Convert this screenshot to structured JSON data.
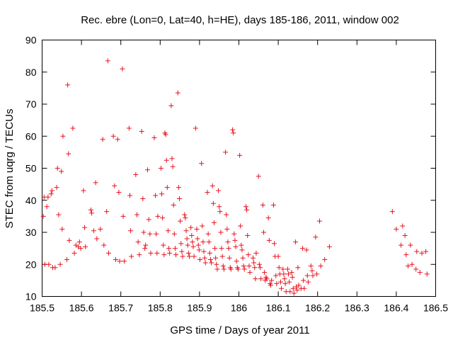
{
  "chart_data": {
    "type": "scatter",
    "title": "Rec. ebre (Lon=0, Lat=40, h=HE), days 185-186, 2011, window 002",
    "xlabel": "GPS time / Days of year 2011",
    "ylabel": "STEC from uqrg / TECUs",
    "xlim": [
      185.5,
      186.5
    ],
    "ylim": [
      10,
      90
    ],
    "xticks": [
      185.5,
      185.6,
      185.7,
      185.8,
      185.9,
      186,
      186.1,
      186.2,
      186.3,
      186.4,
      186.5
    ],
    "xtick_labels": [
      "185.5",
      "185.6",
      "185.7",
      "185.8",
      "185.9",
      "186",
      "186.1",
      "186.2",
      "186.3",
      "186.4",
      "186.5"
    ],
    "yticks": [
      10,
      20,
      30,
      40,
      50,
      60,
      70,
      80,
      90
    ],
    "ytick_labels": [
      "10",
      "20",
      "30",
      "40",
      "50",
      "60",
      "70",
      "80",
      "90"
    ],
    "grid": false,
    "legend": "none",
    "marker": "+",
    "color": "#e8121e",
    "series": [
      {
        "name": "STEC",
        "points": [
          [
            185.503,
            35
          ],
          [
            185.505,
            41
          ],
          [
            185.507,
            20
          ],
          [
            185.512,
            38
          ],
          [
            185.515,
            41
          ],
          [
            185.517,
            20
          ],
          [
            185.523,
            42
          ],
          [
            185.525,
            43
          ],
          [
            185.527,
            19
          ],
          [
            185.533,
            19
          ],
          [
            185.537,
            44
          ],
          [
            185.539,
            50
          ],
          [
            185.542,
            35.5
          ],
          [
            185.546,
            20
          ],
          [
            185.549,
            49
          ],
          [
            185.551,
            31
          ],
          [
            185.553,
            60
          ],
          [
            185.563,
            21.5
          ],
          [
            185.565,
            76
          ],
          [
            185.567,
            54.5
          ],
          [
            185.569,
            27.5
          ],
          [
            185.578,
            62.5
          ],
          [
            185.582,
            23.5
          ],
          [
            185.586,
            26
          ],
          [
            185.592,
            25.5
          ],
          [
            185.595,
            27
          ],
          [
            185.598,
            25
          ],
          [
            185.605,
            43
          ],
          [
            185.608,
            31.5
          ],
          [
            185.61,
            25.5
          ],
          [
            185.624,
            37
          ],
          [
            185.626,
            36
          ],
          [
            185.631,
            30.5
          ],
          [
            185.636,
            45.5
          ],
          [
            185.639,
            28
          ],
          [
            185.648,
            31
          ],
          [
            185.654,
            59
          ],
          [
            185.657,
            26
          ],
          [
            185.664,
            36.5
          ],
          [
            185.667,
            83.5
          ],
          [
            185.669,
            23.5
          ],
          [
            185.681,
            60
          ],
          [
            185.684,
            44.5
          ],
          [
            185.687,
            21.5
          ],
          [
            185.692,
            59
          ],
          [
            185.695,
            42.5
          ],
          [
            185.697,
            21
          ],
          [
            185.704,
            81
          ],
          [
            185.706,
            35
          ],
          [
            185.709,
            21
          ],
          [
            185.721,
            62.5
          ],
          [
            185.723,
            41.5
          ],
          [
            185.725,
            30.5
          ],
          [
            185.727,
            22.5
          ],
          [
            185.738,
            48
          ],
          [
            185.741,
            35.5
          ],
          [
            185.744,
            27
          ],
          [
            185.747,
            23
          ],
          [
            185.753,
            61.5
          ],
          [
            185.756,
            40.5
          ],
          [
            185.758,
            30
          ],
          [
            185.761,
            25
          ],
          [
            185.763,
            26
          ],
          [
            185.768,
            49.5
          ],
          [
            185.771,
            34
          ],
          [
            185.774,
            29.5
          ],
          [
            185.776,
            23.5
          ],
          [
            185.785,
            59.5
          ],
          [
            185.788,
            41.5
          ],
          [
            185.79,
            29.5
          ],
          [
            185.792,
            23.5
          ],
          [
            185.794,
            35
          ],
          [
            185.802,
            50
          ],
          [
            185.804,
            42
          ],
          [
            185.806,
            34.5
          ],
          [
            185.808,
            26
          ],
          [
            185.81,
            23
          ],
          [
            185.812,
            61
          ],
          [
            185.814,
            60.5
          ],
          [
            185.816,
            52.5
          ],
          [
            185.818,
            44
          ],
          [
            185.82,
            30.5
          ],
          [
            185.822,
            25
          ],
          [
            185.824,
            23.5
          ],
          [
            185.828,
            69.5
          ],
          [
            185.83,
            53
          ],
          [
            185.832,
            50.5
          ],
          [
            185.834,
            38.5
          ],
          [
            185.836,
            29.5
          ],
          [
            185.838,
            25
          ],
          [
            185.84,
            23
          ],
          [
            185.845,
            73.5
          ],
          [
            185.847,
            44
          ],
          [
            185.849,
            40.5
          ],
          [
            185.851,
            33.5
          ],
          [
            185.853,
            26.5
          ],
          [
            185.855,
            24
          ],
          [
            185.857,
            22.5
          ],
          [
            185.862,
            35.5
          ],
          [
            185.864,
            34.5
          ],
          [
            185.866,
            30.5
          ],
          [
            185.868,
            28
          ],
          [
            185.87,
            26
          ],
          [
            185.872,
            23.5
          ],
          [
            185.874,
            22.5
          ],
          [
            185.878,
            31.5
          ],
          [
            185.88,
            29
          ],
          [
            185.882,
            27
          ],
          [
            185.884,
            25.5
          ],
          [
            185.886,
            22.5
          ],
          [
            185.89,
            62.5
          ],
          [
            185.893,
            31
          ],
          [
            185.895,
            28
          ],
          [
            185.897,
            26
          ],
          [
            185.899,
            24.5
          ],
          [
            185.901,
            21.5
          ],
          [
            185.905,
            51.5
          ],
          [
            185.907,
            32
          ],
          [
            185.909,
            27
          ],
          [
            185.911,
            24
          ],
          [
            185.913,
            22
          ],
          [
            185.915,
            20.5
          ],
          [
            185.92,
            42.5
          ],
          [
            185.922,
            29.5
          ],
          [
            185.924,
            27
          ],
          [
            185.926,
            23.5
          ],
          [
            185.928,
            21.5
          ],
          [
            185.93,
            20.5
          ],
          [
            185.933,
            44.5
          ],
          [
            185.935,
            39
          ],
          [
            185.937,
            33
          ],
          [
            185.939,
            25
          ],
          [
            185.941,
            22
          ],
          [
            185.943,
            20
          ],
          [
            185.945,
            18.5
          ],
          [
            185.948,
            43
          ],
          [
            185.95,
            38
          ],
          [
            185.952,
            36.5
          ],
          [
            185.954,
            30
          ],
          [
            185.956,
            25
          ],
          [
            185.958,
            22.5
          ],
          [
            185.96,
            19.5
          ],
          [
            185.962,
            18.5
          ],
          [
            185.966,
            55
          ],
          [
            185.968,
            35.5
          ],
          [
            185.97,
            31
          ],
          [
            185.972,
            27
          ],
          [
            185.974,
            25
          ],
          [
            185.976,
            22
          ],
          [
            185.978,
            19
          ],
          [
            185.98,
            18.5
          ],
          [
            185.984,
            62
          ],
          [
            185.986,
            61
          ],
          [
            185.988,
            29.5
          ],
          [
            185.99,
            27.5
          ],
          [
            185.992,
            25.5
          ],
          [
            185.994,
            21
          ],
          [
            185.996,
            19
          ],
          [
            185.998,
            18.5
          ],
          [
            186.002,
            54
          ],
          [
            186.004,
            32
          ],
          [
            186.006,
            26
          ],
          [
            186.008,
            24.5
          ],
          [
            186.01,
            22
          ],
          [
            186.012,
            19.5
          ],
          [
            186.014,
            18.5
          ],
          [
            186.018,
            38
          ],
          [
            186.02,
            37
          ],
          [
            186.022,
            29
          ],
          [
            186.024,
            23
          ],
          [
            186.026,
            19.5
          ],
          [
            186.028,
            17.5
          ],
          [
            186.036,
            22
          ],
          [
            186.038,
            20.5
          ],
          [
            186.04,
            19
          ],
          [
            186.042,
            15.5
          ],
          [
            186.044,
            23.5
          ],
          [
            186.05,
            47.5
          ],
          [
            186.052,
            20
          ],
          [
            186.054,
            19
          ],
          [
            186.056,
            15.5
          ],
          [
            186.061,
            38.5
          ],
          [
            186.063,
            30
          ],
          [
            186.065,
            17.5
          ],
          [
            186.067,
            15
          ],
          [
            186.069,
            16
          ],
          [
            186.071,
            15.5
          ],
          [
            186.075,
            34.5
          ],
          [
            186.077,
            27.5
          ],
          [
            186.079,
            14
          ],
          [
            186.081,
            13.5
          ],
          [
            186.083,
            15
          ],
          [
            186.088,
            38.5
          ],
          [
            186.09,
            26.5
          ],
          [
            186.092,
            22.5
          ],
          [
            186.094,
            16.5
          ],
          [
            186.096,
            14
          ],
          [
            186.1,
            22.5
          ],
          [
            186.102,
            19
          ],
          [
            186.104,
            17
          ],
          [
            186.106,
            14.5
          ],
          [
            186.108,
            12.5
          ],
          [
            186.112,
            18.5
          ],
          [
            186.114,
            17
          ],
          [
            186.116,
            15.5
          ],
          [
            186.118,
            14
          ],
          [
            186.12,
            11.5
          ],
          [
            186.124,
            18.5
          ],
          [
            186.126,
            17
          ],
          [
            186.128,
            14.5
          ],
          [
            186.13,
            11.5
          ],
          [
            186.134,
            17.5
          ],
          [
            186.136,
            16
          ],
          [
            186.138,
            12.5
          ],
          [
            186.14,
            11
          ],
          [
            186.144,
            27
          ],
          [
            186.146,
            13
          ],
          [
            186.148,
            12
          ],
          [
            186.15,
            19
          ],
          [
            186.152,
            13.5
          ],
          [
            186.158,
            12.5
          ],
          [
            186.162,
            25
          ],
          [
            186.164,
            15
          ],
          [
            186.166,
            12.5
          ],
          [
            186.172,
            24.5
          ],
          [
            186.174,
            16.5
          ],
          [
            186.176,
            14.5
          ],
          [
            186.183,
            19.5
          ],
          [
            186.186,
            18
          ],
          [
            186.188,
            16.5
          ],
          [
            186.195,
            28.5
          ],
          [
            186.198,
            17
          ],
          [
            186.205,
            33.5
          ],
          [
            186.208,
            19.5
          ],
          [
            186.218,
            21.5
          ],
          [
            186.23,
            25.5
          ],
          [
            186.39,
            36.5
          ],
          [
            186.4,
            31
          ],
          [
            186.412,
            26
          ],
          [
            186.416,
            32
          ],
          [
            186.422,
            29
          ],
          [
            186.425,
            23
          ],
          [
            186.43,
            19.5
          ],
          [
            186.436,
            26
          ],
          [
            186.44,
            20
          ],
          [
            186.45,
            18.5
          ],
          [
            186.452,
            24
          ],
          [
            186.46,
            17.5
          ],
          [
            186.465,
            23.5
          ],
          [
            186.475,
            24
          ],
          [
            186.478,
            17
          ]
        ]
      }
    ]
  }
}
